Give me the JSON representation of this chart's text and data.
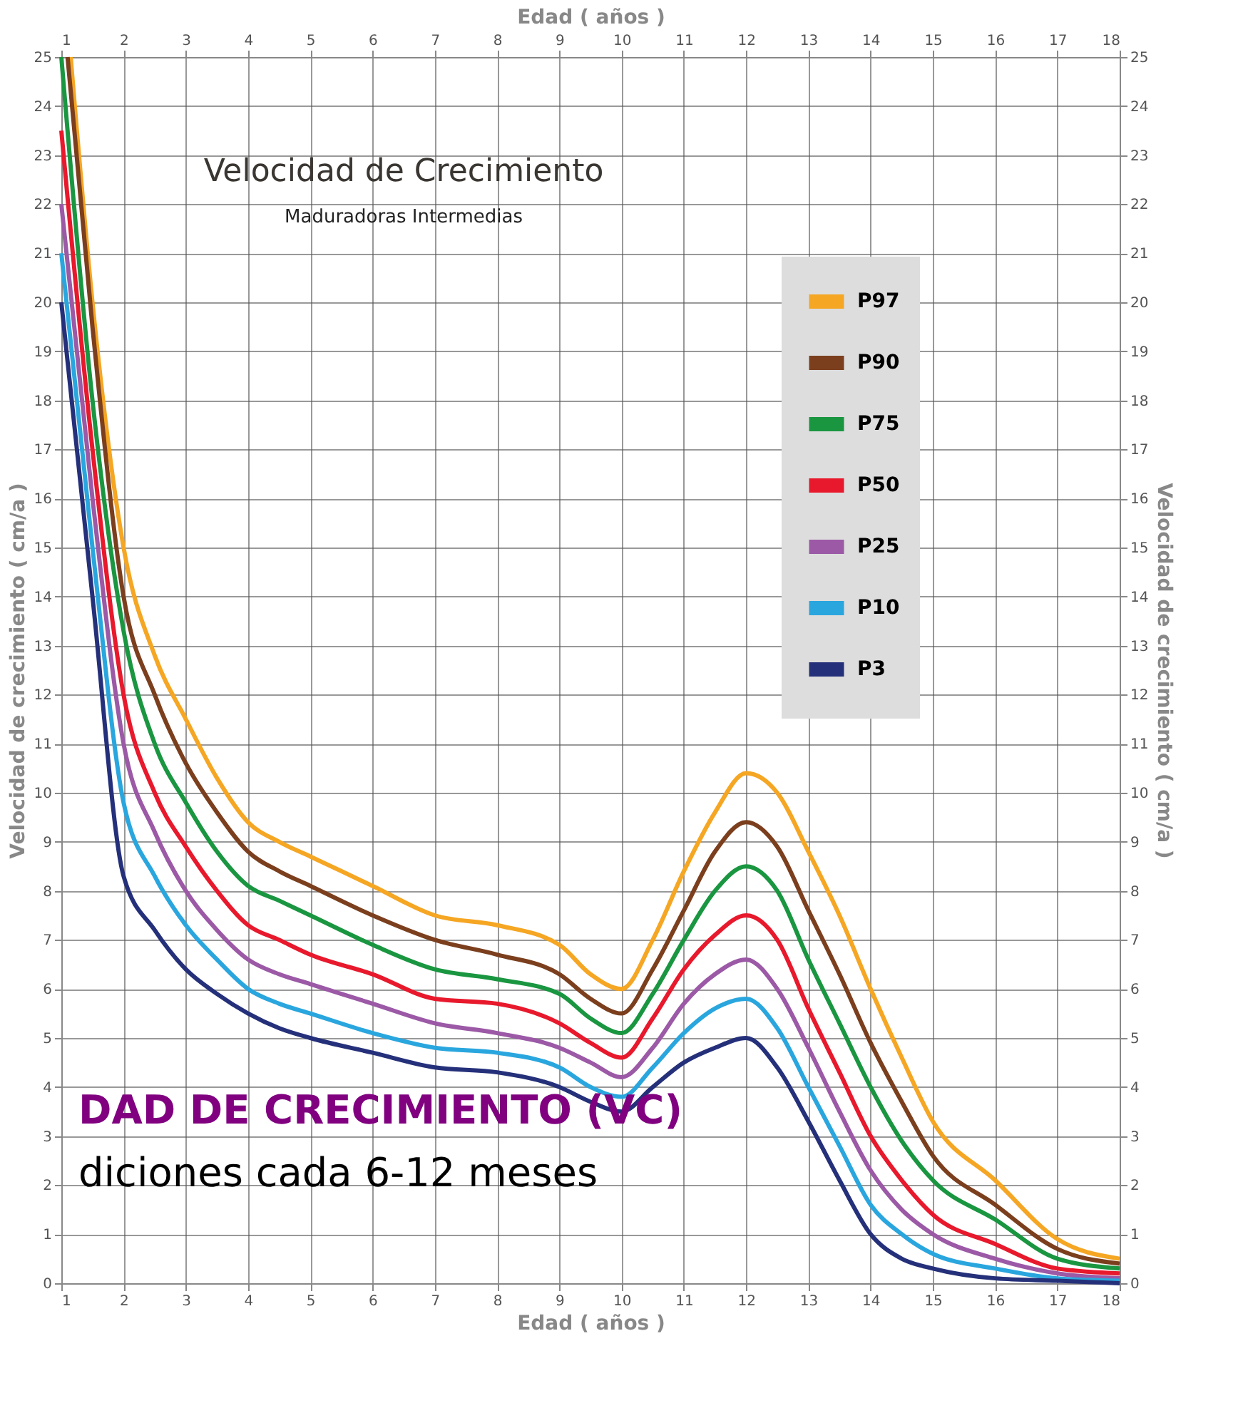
{
  "chart_data": {
    "type": "line",
    "title": "Velocidad de Crecimiento",
    "subtitle": "Maduradoras Intermedias",
    "xlabel": "Edad ( años )",
    "x2label": "Edad ( años )",
    "ylabel": "Velocidad de crecimiento ( cm/a )",
    "y2label": "Velocidad de crecimiento ( cm/a )",
    "xlim": [
      1,
      18
    ],
    "xticks": [
      1,
      2,
      3,
      4,
      5,
      6,
      7,
      8,
      9,
      10,
      11,
      12,
      13,
      14,
      15,
      16,
      17,
      18
    ],
    "x2lim": [
      1,
      18
    ],
    "x2ticks": [
      1,
      2,
      3,
      4,
      5,
      6,
      7,
      8,
      9,
      10,
      11,
      12,
      13,
      14,
      15,
      16,
      17,
      18
    ],
    "ylim": [
      0,
      25
    ],
    "yticks": [
      0,
      1,
      2,
      3,
      4,
      5,
      6,
      7,
      8,
      9,
      10,
      11,
      12,
      13,
      14,
      15,
      16,
      17,
      18,
      19,
      20,
      21,
      22,
      23,
      24,
      25
    ],
    "y2lim": [
      0,
      25
    ],
    "y2ticks": [
      0,
      1,
      2,
      3,
      4,
      5,
      6,
      7,
      8,
      9,
      10,
      11,
      12,
      13,
      14,
      15,
      16,
      17,
      18,
      19,
      20,
      21,
      22,
      23,
      24,
      25
    ],
    "grid": true,
    "legend": "top right",
    "marker": "none",
    "line_style": "solid",
    "x": [
      1,
      1.5,
      2,
      2.5,
      3,
      3.5,
      4,
      4.5,
      5,
      6,
      7,
      8,
      9,
      9.5,
      10,
      10.5,
      11,
      11.5,
      12,
      12.5,
      13,
      13.5,
      14,
      14.5,
      15,
      16,
      17,
      18
    ],
    "series": [
      {
        "name": "P97",
        "color": "#f5a623",
        "x": [
          1.15,
          1.5,
          2,
          2.5,
          3,
          3.5,
          4,
          4.5,
          5,
          6,
          7,
          8,
          9,
          9.5,
          10,
          10.5,
          11,
          11.5,
          12,
          12.5,
          13,
          13.5,
          14,
          14.5,
          15,
          16,
          17,
          18
        ],
        "values": [
          25,
          20,
          15,
          12.8,
          11.5,
          10.3,
          9.4,
          9.0,
          8.7,
          8.1,
          7.5,
          7.3,
          6.9,
          6.3,
          6.0,
          7.0,
          8.4,
          9.6,
          10.4,
          10.0,
          8.8,
          7.5,
          6.0,
          4.6,
          3.3,
          2.1,
          0.9,
          0.5
        ]
      },
      {
        "name": "P90",
        "color": "#7b3f1e",
        "x": [
          1.1,
          1.5,
          2,
          2.5,
          3,
          3.5,
          4,
          4.5,
          5,
          6,
          7,
          8,
          9,
          9.5,
          10,
          10.5,
          11,
          11.5,
          12,
          12.5,
          13,
          13.5,
          14,
          14.5,
          15,
          16,
          17,
          18
        ],
        "values": [
          25,
          19.5,
          14,
          12,
          10.6,
          9.6,
          8.8,
          8.4,
          8.1,
          7.5,
          7.0,
          6.7,
          6.3,
          5.8,
          5.5,
          6.4,
          7.6,
          8.8,
          9.4,
          8.9,
          7.6,
          6.3,
          4.9,
          3.7,
          2.6,
          1.6,
          0.7,
          0.4
        ]
      },
      {
        "name": "P75",
        "color": "#1a9641",
        "values": [
          25,
          18,
          13.3,
          11,
          9.8,
          8.8,
          8.1,
          7.8,
          7.5,
          6.9,
          6.4,
          6.2,
          5.9,
          5.4,
          5.1,
          5.9,
          7.0,
          8.0,
          8.5,
          8.0,
          6.6,
          5.3,
          4.0,
          2.9,
          2.1,
          1.3,
          0.5,
          0.3
        ]
      },
      {
        "name": "P50",
        "color": "#e8192c",
        "values": [
          23.5,
          17,
          12,
          10,
          8.9,
          8.0,
          7.3,
          7.0,
          6.7,
          6.3,
          5.8,
          5.7,
          5.3,
          4.9,
          4.6,
          5.4,
          6.4,
          7.1,
          7.5,
          7.0,
          5.6,
          4.3,
          3.0,
          2.1,
          1.4,
          0.8,
          0.3,
          0.2
        ]
      },
      {
        "name": "P25",
        "color": "#9b59a6",
        "values": [
          22,
          16,
          11,
          9.2,
          8.0,
          7.2,
          6.6,
          6.3,
          6.1,
          5.7,
          5.3,
          5.1,
          4.8,
          4.5,
          4.2,
          4.8,
          5.7,
          6.3,
          6.6,
          6.0,
          4.8,
          3.5,
          2.3,
          1.5,
          1.0,
          0.5,
          0.2,
          0.1
        ]
      },
      {
        "name": "P10",
        "color": "#2aa6de",
        "values": [
          21,
          15,
          9.8,
          8.3,
          7.3,
          6.6,
          6.0,
          5.7,
          5.5,
          5.1,
          4.8,
          4.7,
          4.4,
          4.0,
          3.8,
          4.4,
          5.1,
          5.6,
          5.8,
          5.2,
          4.0,
          2.8,
          1.6,
          1.0,
          0.6,
          0.3,
          0.1,
          0.05
        ]
      },
      {
        "name": "P3",
        "color": "#25307a",
        "values": [
          20,
          14,
          8.3,
          7.2,
          6.4,
          5.9,
          5.5,
          5.2,
          5.0,
          4.7,
          4.4,
          4.3,
          4.0,
          3.7,
          3.5,
          4.0,
          4.5,
          4.8,
          5.0,
          4.4,
          3.3,
          2.1,
          1.0,
          0.5,
          0.3,
          0.1,
          0.05,
          0.0
        ]
      }
    ],
    "annotations": [
      "DAD DE CRECIMIENTO (VC)",
      "diciones cada 6-12 meses"
    ]
  }
}
